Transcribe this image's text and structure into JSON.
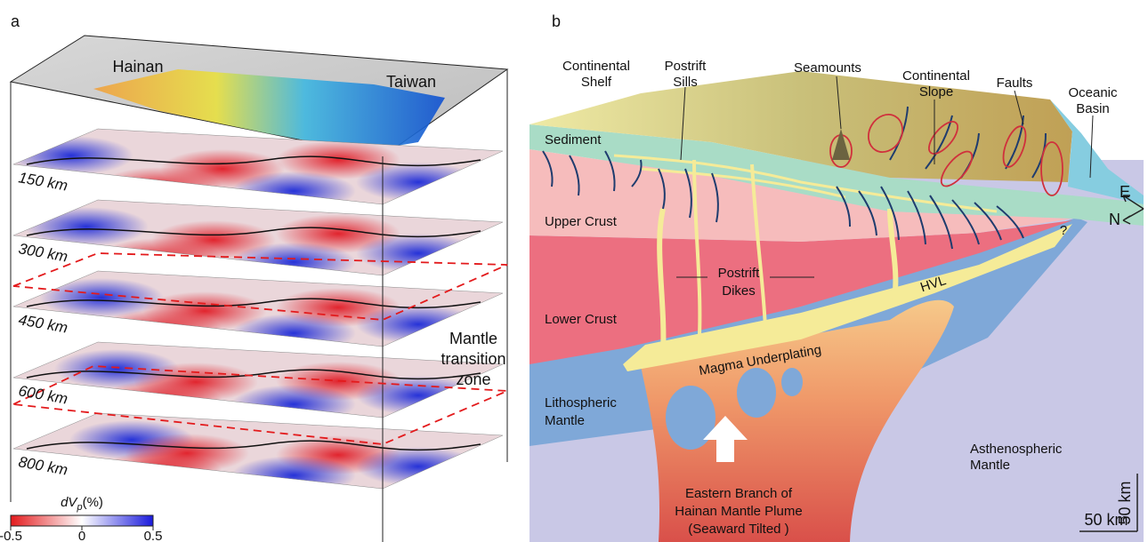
{
  "panel_a": {
    "letter": "a",
    "map_labels": [
      "Hainan",
      "Taiwan"
    ],
    "depths": [
      "150 km",
      "300 km",
      "450 km",
      "600 km",
      "800 km"
    ],
    "mtz_label": [
      "Mantle",
      "transition",
      "zone"
    ],
    "colorbar": {
      "label": {
        "main": "dV",
        "sub": "p",
        "unit": "(%)"
      },
      "ticks": [
        -0.5,
        0,
        0.5
      ]
    }
  },
  "panel_b": {
    "letter": "b",
    "continental_shelf": [
      "Continental",
      "Shelf"
    ],
    "postrift_sills": [
      "Postrift",
      "Sills"
    ],
    "seamounts": "Seamounts",
    "continental_slope": [
      "Continental",
      "Slope"
    ],
    "faults": "Faults",
    "oceanic_basin": [
      "Oceanic",
      "Basin"
    ],
    "sediment": "Sediment",
    "upper_crust": "Upper Crust",
    "lower_crust": "Lower Crust",
    "postrift_dikes": [
      "Postrift",
      "Dikes"
    ],
    "hvl": "HVL",
    "question": "?",
    "magma_underplating": "Magma Underplating",
    "lithospheric_mantle": [
      "Lithospheric",
      "Mantle"
    ],
    "asthenospheric_mantle": [
      "Asthenospheric",
      "Mantle"
    ],
    "plume": [
      "Eastern Branch of",
      "Hainan  Mantle  Plume",
      "(Seaward Tilted )"
    ],
    "compass": [
      "E",
      "N"
    ],
    "scale_vertical": "50 km",
    "scale_horizontal": "50 km"
  }
}
